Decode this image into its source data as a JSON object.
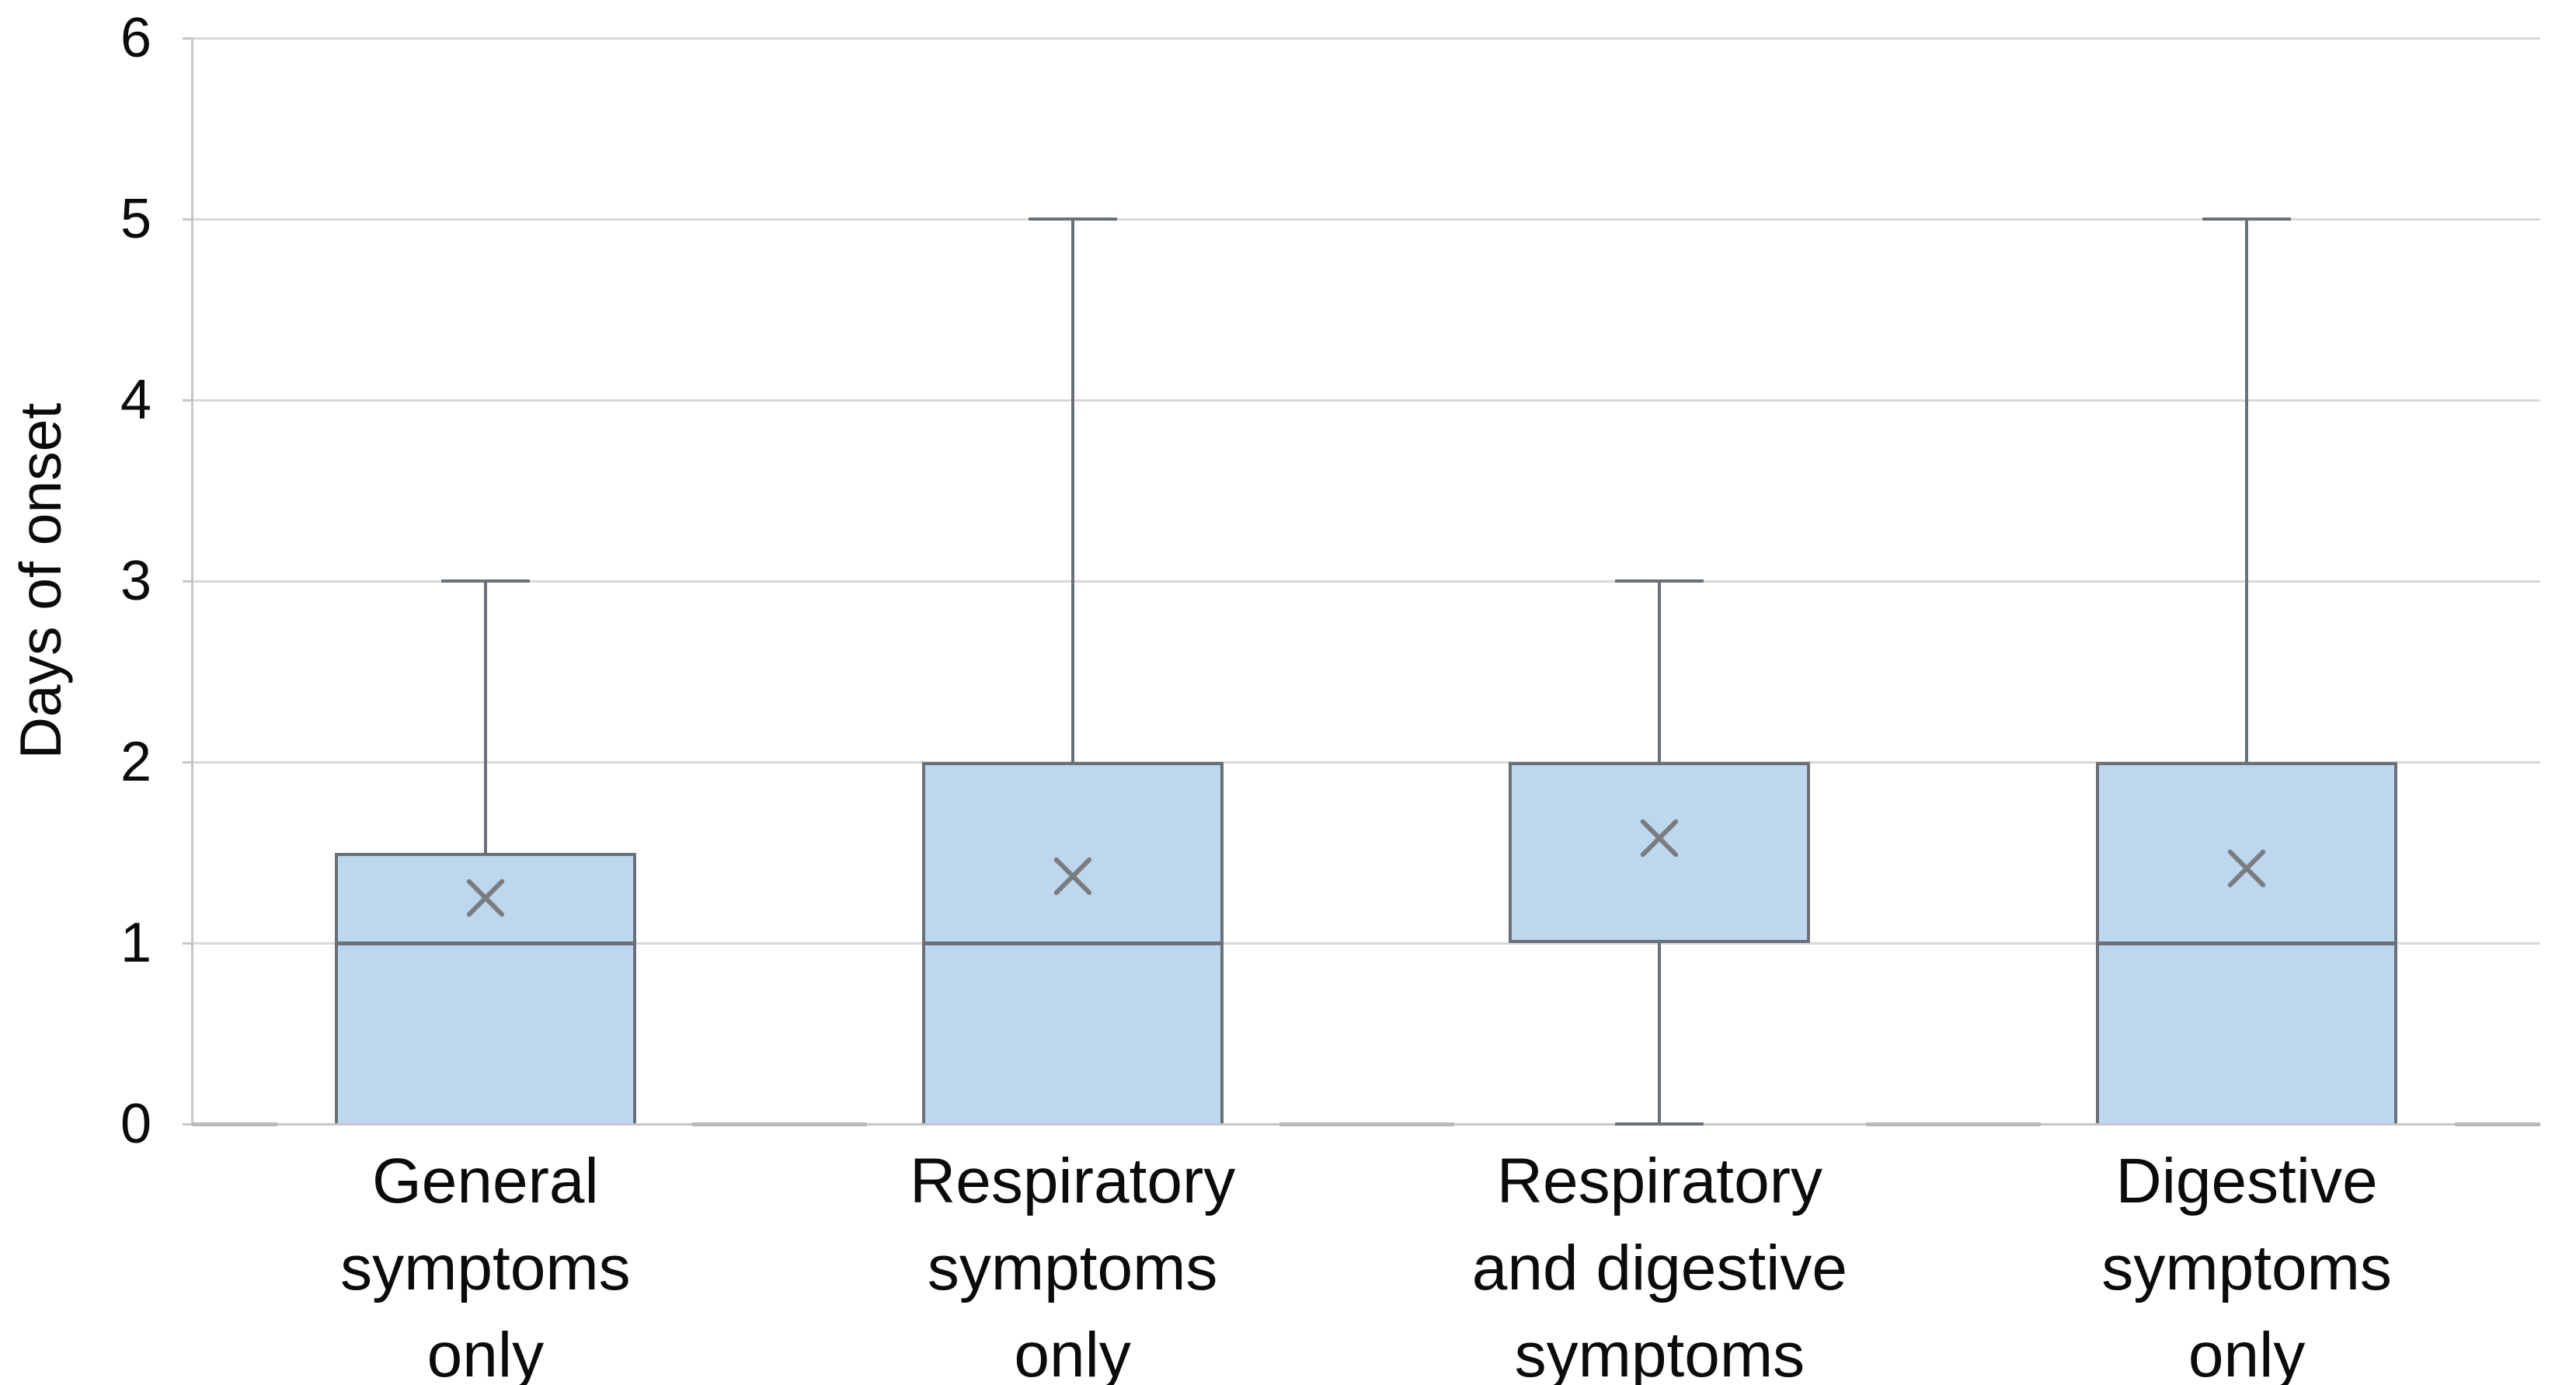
{
  "chart_data": {
    "type": "boxplot",
    "title": "",
    "xlabel": "",
    "ylabel": "Days of onset",
    "ylim": [
      0,
      6
    ],
    "yticks": [
      0,
      1,
      2,
      3,
      4,
      5,
      6
    ],
    "grid": "horizontal",
    "legend": "none",
    "plot_background": "#ffffff",
    "categories": [
      "General symptoms only",
      "Respiratory symptoms only",
      "Respiratory and digestive symptoms",
      "Digestive symptoms only"
    ],
    "category_label_lines": [
      [
        "General",
        "symptoms",
        "only"
      ],
      [
        "Respiratory",
        "symptoms",
        "only"
      ],
      [
        "Respiratory",
        "and digestive",
        "symptoms"
      ],
      [
        "Digestive",
        "symptoms",
        "only"
      ]
    ],
    "boxes": [
      {
        "category": "General symptoms only",
        "whisker_low": 0,
        "q1": 0,
        "median": 1,
        "q3": 1.5,
        "whisker_high": 3,
        "mean": 1.25
      },
      {
        "category": "Respiratory symptoms only",
        "whisker_low": 0,
        "q1": 0,
        "median": 1,
        "q3": 2,
        "whisker_high": 5,
        "mean": 1.37
      },
      {
        "category": "Respiratory and digestive symptoms",
        "whisker_low": 0,
        "q1": 1,
        "median": null,
        "q3": 2,
        "whisker_high": 3,
        "mean": 1.58
      },
      {
        "category": "Digestive symptoms only",
        "whisker_low": 0,
        "q1": 0,
        "median": 1,
        "q3": 2,
        "whisker_high": 5,
        "mean": 1.41
      }
    ],
    "mean_marker_symbol": "x-cross",
    "colors": {
      "box_fill": "#bdd7ee",
      "box_border": "#6a7077",
      "median_line": "#6a7077",
      "whisker": "#6a7077",
      "mean_marker": "#7a7c80",
      "gridline": "#d9d9d9",
      "axis_line": "#c6c6c6",
      "axis_boundary_tick": "#b9b9b9",
      "text": "#0b0b0b"
    }
  }
}
